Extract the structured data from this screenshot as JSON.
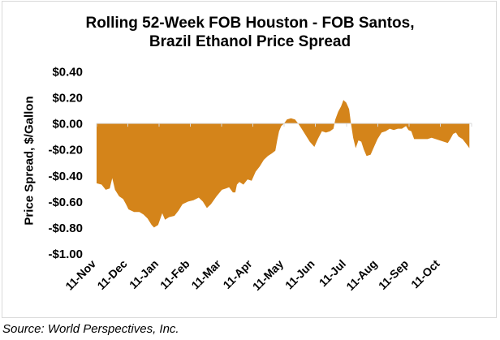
{
  "chart_data": {
    "type": "area",
    "title": "Rolling 52-Week FOB Houston - FOB Santos, Brazil Ethanol Price Spread",
    "title_lines": [
      "Rolling 52-Week FOB Houston - FOB Santos,",
      "Brazil Ethanol Price Spread"
    ],
    "xlabel": "",
    "ylabel": "Price Spread, $/Gallon",
    "ylim": [
      -1.0,
      0.4
    ],
    "yticks": [
      0.4,
      0.2,
      0.0,
      -0.2,
      -0.4,
      -0.6,
      -0.8,
      -1.0
    ],
    "ytick_labels": [
      "$0.40",
      "$0.20",
      "$0.00",
      "-$0.20",
      "-$0.40",
      "-$0.60",
      "-$0.80",
      "-$1.00"
    ],
    "categories": [
      "11-Nov",
      "11-Dec",
      "11-Jan",
      "11-Feb",
      "11-Mar",
      "11-Apr",
      "11-May",
      "11-Jun",
      "11-Jul",
      "11-Aug",
      "11-Sep",
      "11-Oct"
    ],
    "x_unit": "months since 11-Nov",
    "xlim": [
      0,
      12
    ],
    "grid": false,
    "legend": "none",
    "fill_color": "#D4841A",
    "series": [
      {
        "name": "FOB Houston - FOB Santos spread",
        "points": [
          [
            0.0,
            -0.46
          ],
          [
            0.16,
            -0.47
          ],
          [
            0.29,
            -0.51
          ],
          [
            0.42,
            -0.5
          ],
          [
            0.5,
            -0.42
          ],
          [
            0.59,
            -0.51
          ],
          [
            0.72,
            -0.56
          ],
          [
            0.85,
            -0.58
          ],
          [
            0.94,
            -0.62
          ],
          [
            1.02,
            -0.66
          ],
          [
            1.2,
            -0.68
          ],
          [
            1.37,
            -0.68
          ],
          [
            1.5,
            -0.7
          ],
          [
            1.63,
            -0.73
          ],
          [
            1.76,
            -0.78
          ],
          [
            1.84,
            -0.8
          ],
          [
            1.97,
            -0.78
          ],
          [
            2.1,
            -0.69
          ],
          [
            2.19,
            -0.74
          ],
          [
            2.32,
            -0.72
          ],
          [
            2.49,
            -0.71
          ],
          [
            2.62,
            -0.67
          ],
          [
            2.75,
            -0.62
          ],
          [
            2.93,
            -0.6
          ],
          [
            3.1,
            -0.59
          ],
          [
            3.27,
            -0.57
          ],
          [
            3.4,
            -0.6
          ],
          [
            3.53,
            -0.65
          ],
          [
            3.66,
            -0.62
          ],
          [
            3.84,
            -0.56
          ],
          [
            4.01,
            -0.51
          ],
          [
            4.14,
            -0.5
          ],
          [
            4.24,
            -0.49
          ],
          [
            4.36,
            -0.53
          ],
          [
            4.44,
            -0.53
          ],
          [
            4.49,
            -0.47
          ],
          [
            4.57,
            -0.45
          ],
          [
            4.7,
            -0.47
          ],
          [
            4.83,
            -0.43
          ],
          [
            4.96,
            -0.44
          ],
          [
            5.09,
            -0.37
          ],
          [
            5.22,
            -0.33
          ],
          [
            5.35,
            -0.28
          ],
          [
            5.48,
            -0.25
          ],
          [
            5.61,
            -0.23
          ],
          [
            5.72,
            -0.21
          ],
          [
            5.78,
            -0.13
          ],
          [
            5.84,
            -0.06
          ],
          [
            5.91,
            -0.02
          ],
          [
            6.0,
            0.0
          ],
          [
            6.09,
            0.03
          ],
          [
            6.22,
            0.04
          ],
          [
            6.35,
            0.03
          ],
          [
            6.45,
            0.0
          ],
          [
            6.56,
            -0.04
          ],
          [
            6.69,
            -0.09
          ],
          [
            6.82,
            -0.14
          ],
          [
            6.97,
            -0.18
          ],
          [
            7.08,
            -0.12
          ],
          [
            7.21,
            -0.06
          ],
          [
            7.34,
            -0.07
          ],
          [
            7.47,
            -0.06
          ],
          [
            7.58,
            -0.04
          ],
          [
            7.64,
            0.03
          ],
          [
            7.73,
            0.09
          ],
          [
            7.82,
            0.13
          ],
          [
            7.9,
            0.18
          ],
          [
            7.99,
            0.16
          ],
          [
            8.08,
            0.11
          ],
          [
            8.14,
            0.0
          ],
          [
            8.21,
            -0.11
          ],
          [
            8.29,
            -0.19
          ],
          [
            8.38,
            -0.13
          ],
          [
            8.47,
            -0.14
          ],
          [
            8.55,
            -0.2
          ],
          [
            8.64,
            -0.25
          ],
          [
            8.77,
            -0.24
          ],
          [
            8.86,
            -0.19
          ],
          [
            8.99,
            -0.12
          ],
          [
            9.12,
            -0.07
          ],
          [
            9.25,
            -0.06
          ],
          [
            9.38,
            -0.04
          ],
          [
            9.51,
            -0.05
          ],
          [
            9.64,
            -0.04
          ],
          [
            9.77,
            -0.04
          ],
          [
            9.9,
            -0.02
          ],
          [
            9.98,
            -0.05
          ],
          [
            10.07,
            -0.06
          ],
          [
            10.16,
            -0.12
          ],
          [
            10.29,
            -0.12
          ],
          [
            10.42,
            -0.12
          ],
          [
            10.59,
            -0.12
          ],
          [
            10.72,
            -0.11
          ],
          [
            10.85,
            -0.12
          ],
          [
            10.98,
            -0.13
          ],
          [
            11.11,
            -0.14
          ],
          [
            11.24,
            -0.15
          ],
          [
            11.32,
            -0.12
          ],
          [
            11.41,
            -0.08
          ],
          [
            11.5,
            -0.07
          ],
          [
            11.58,
            -0.1
          ],
          [
            11.71,
            -0.12
          ],
          [
            11.84,
            -0.16
          ],
          [
            11.93,
            -0.19
          ]
        ]
      }
    ]
  },
  "source": "Source: World Perspectives, Inc."
}
